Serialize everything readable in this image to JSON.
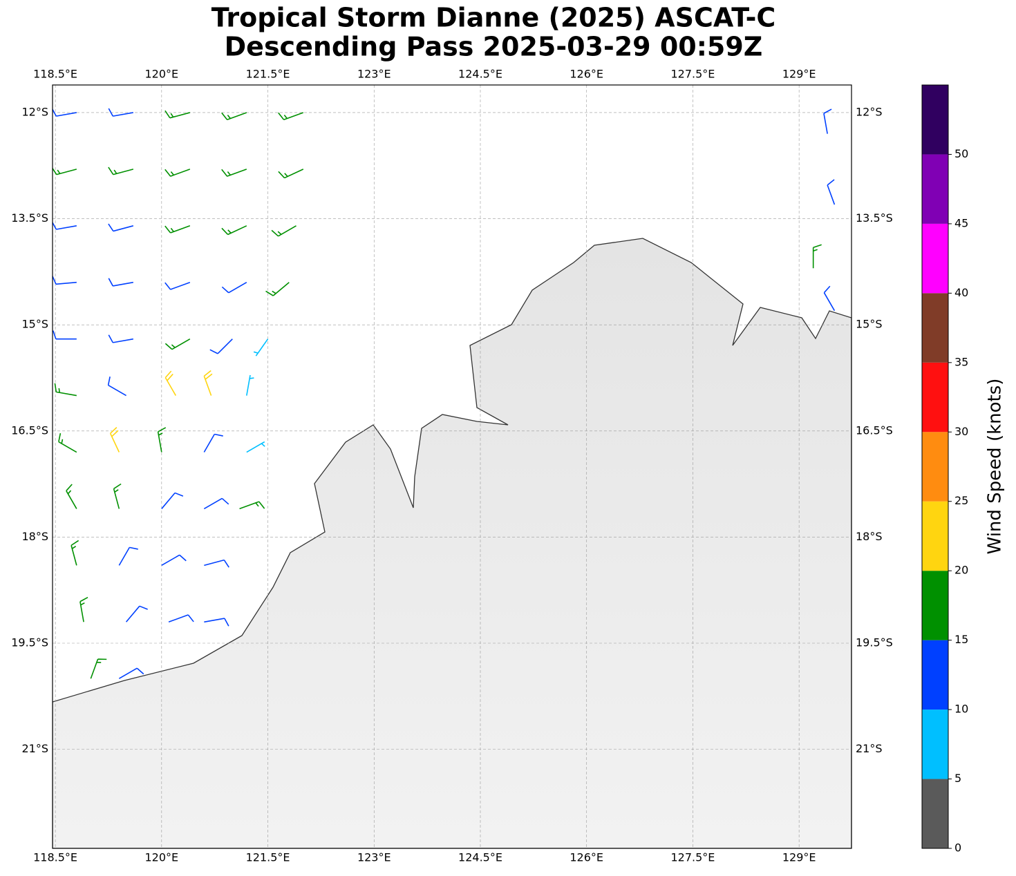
{
  "chart_data": {
    "type": "wind-barbs",
    "title": "Tropical Storm Dianne (2025) ASCAT-C",
    "subtitle": "Descending Pass 2025-03-29 00:59Z",
    "xlim": [
      118.46,
      129.74
    ],
    "ylim": [
      -22.4,
      -11.61
    ],
    "xticks": [
      {
        "value": 118.5,
        "label": "118.5°E"
      },
      {
        "value": 120,
        "label": "120°E"
      },
      {
        "value": 121.5,
        "label": "121.5°E"
      },
      {
        "value": 123,
        "label": "123°E"
      },
      {
        "value": 124.5,
        "label": "124.5°E"
      },
      {
        "value": 126,
        "label": "126°E"
      },
      {
        "value": 127.5,
        "label": "127.5°E"
      },
      {
        "value": 129,
        "label": "129°E"
      }
    ],
    "yticks": [
      {
        "value": -12,
        "label": "12°S"
      },
      {
        "value": -13.5,
        "label": "13.5°S"
      },
      {
        "value": -15,
        "label": "15°S"
      },
      {
        "value": -16.5,
        "label": "16.5°S"
      },
      {
        "value": -18,
        "label": "18°S"
      },
      {
        "value": -19.5,
        "label": "19.5°S"
      },
      {
        "value": -21,
        "label": "21°S"
      }
    ],
    "grid": true,
    "barbs": {
      "lon": [
        118.8,
        119.6,
        120.4,
        121.2,
        122.0,
        118.8,
        119.6,
        120.4,
        121.2,
        122.0,
        118.8,
        119.6,
        120.4,
        121.2,
        121.9,
        118.8,
        119.6,
        120.4,
        121.2,
        121.8,
        118.8,
        119.6,
        120.4,
        121.0,
        121.5,
        118.8,
        119.5,
        120.2,
        120.7,
        121.2,
        118.8,
        119.4,
        120.0,
        120.6,
        121.2,
        118.8,
        119.4,
        120.0,
        120.6,
        121.1,
        118.8,
        119.4,
        120.0,
        120.6,
        118.9,
        119.5,
        120.1,
        120.6,
        119.0,
        119.4,
        129.4,
        129.5,
        129.2,
        129.5
      ],
      "lat": [
        -12,
        -12,
        -12,
        -12,
        -12,
        -12.8,
        -12.8,
        -12.8,
        -12.8,
        -12.8,
        -13.6,
        -13.6,
        -13.6,
        -13.6,
        -13.6,
        -14.4,
        -14.4,
        -14.4,
        -14.4,
        -14.4,
        -15.2,
        -15.2,
        -15.2,
        -15.2,
        -15.2,
        -16,
        -16,
        -16,
        -16,
        -16,
        -16.8,
        -16.8,
        -16.8,
        -16.8,
        -16.8,
        -17.6,
        -17.6,
        -17.6,
        -17.6,
        -17.6,
        -18.4,
        -18.4,
        -18.4,
        -18.4,
        -19.2,
        -19.2,
        -19.2,
        -19.2,
        -20,
        -20,
        -12.3,
        -13.3,
        -14.2,
        -14.8
      ],
      "speed": [
        12,
        13,
        16,
        17,
        17,
        16,
        17,
        17,
        18,
        17,
        13,
        14,
        17,
        18,
        16,
        12,
        13,
        14,
        13,
        17,
        13,
        14,
        16,
        13,
        8,
        16,
        13,
        22,
        24,
        9,
        17,
        22,
        17,
        13,
        7,
        17,
        17,
        13,
        12,
        16,
        17,
        14,
        12,
        13,
        16,
        12,
        12,
        13,
        17,
        13,
        13,
        12,
        16,
        13
      ],
      "dir": [
        260,
        260,
        255,
        250,
        250,
        255,
        255,
        250,
        250,
        245,
        260,
        255,
        250,
        245,
        240,
        265,
        260,
        250,
        240,
        230,
        270,
        260,
        240,
        225,
        215,
        280,
        300,
        330,
        340,
        10,
        300,
        335,
        350,
        30,
        60,
        330,
        345,
        40,
        60,
        70,
        345,
        30,
        60,
        75,
        350,
        40,
        70,
        80,
        20,
        60,
        350,
        340,
        0,
        330
      ]
    },
    "colorbar": {
      "label": "Wind Speed (knots)",
      "bounds": [
        0,
        5,
        10,
        15,
        20,
        25,
        30,
        35,
        40,
        45,
        50,
        55
      ],
      "colors": [
        "#5a5a5a",
        "#00bfff",
        "#0040ff",
        "#009000",
        "#ffd510",
        "#ff8c10",
        "#ff1010",
        "#803c28",
        "#ff00ff",
        "#8000b4",
        "#300060"
      ],
      "ticks": [
        0,
        5,
        10,
        15,
        20,
        25,
        30,
        35,
        40,
        45,
        50
      ]
    }
  }
}
